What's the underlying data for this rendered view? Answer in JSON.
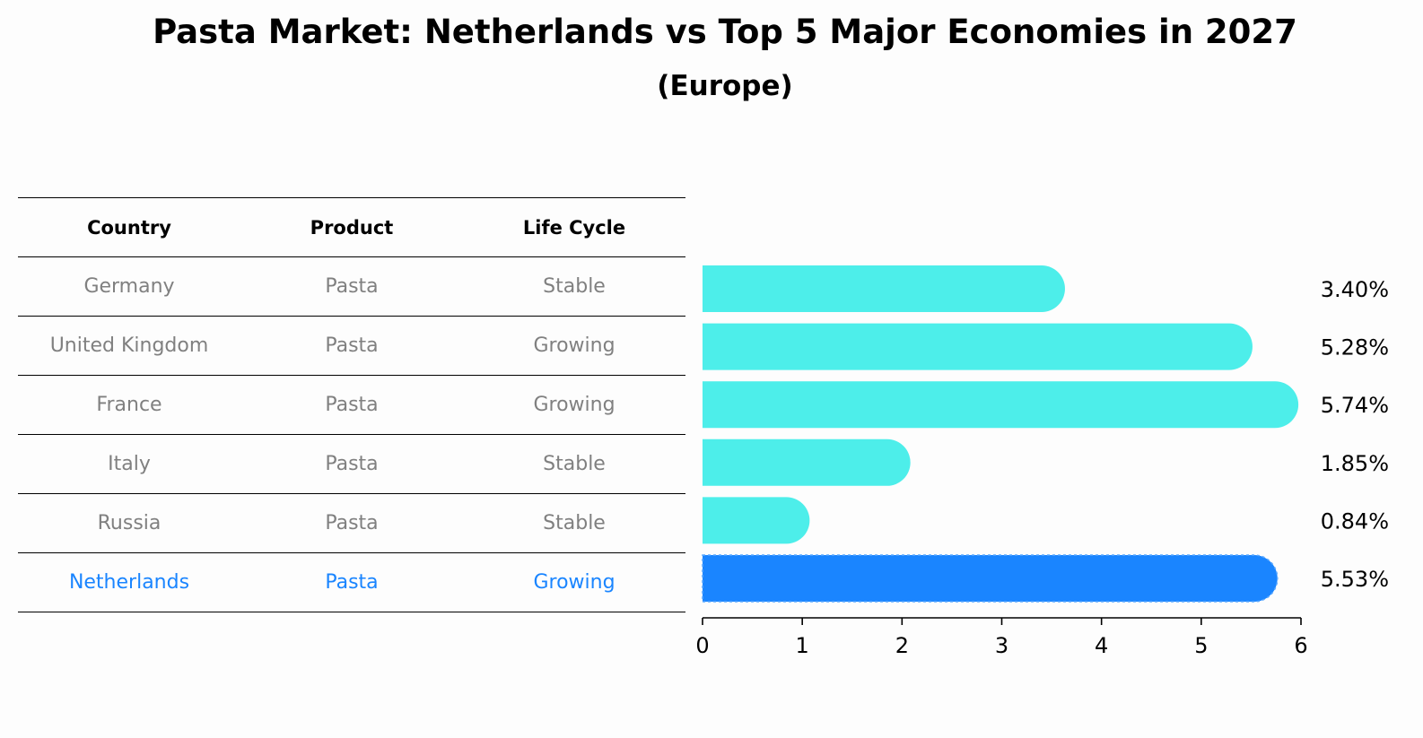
{
  "title": "Pasta Market: Netherlands vs Top 5 Major Economies in 2027",
  "subtitle": "(Europe)",
  "table": {
    "headers": [
      "Country",
      "Product",
      "Life Cycle"
    ],
    "rows": [
      {
        "country": "Germany",
        "product": "Pasta",
        "life_cycle": "Stable"
      },
      {
        "country": "United Kingdom",
        "product": "Pasta",
        "life_cycle": "Growing"
      },
      {
        "country": "France",
        "product": "Pasta",
        "life_cycle": "Growing"
      },
      {
        "country": "Italy",
        "product": "Pasta",
        "life_cycle": "Stable"
      },
      {
        "country": "Russia",
        "product": "Pasta",
        "life_cycle": "Stable"
      },
      {
        "country": "Netherlands",
        "product": "Pasta",
        "life_cycle": "Growing"
      }
    ]
  },
  "colors": {
    "bar": "#4deeea",
    "highlight": "#1a85ff",
    "text_muted": "#808080"
  },
  "chart_data": {
    "type": "bar",
    "orientation": "horizontal",
    "categories": [
      "Germany",
      "United Kingdom",
      "France",
      "Italy",
      "Russia",
      "Netherlands"
    ],
    "values": [
      3.4,
      5.28,
      5.74,
      1.85,
      0.84,
      5.53
    ],
    "value_labels": [
      "3.40%",
      "5.28%",
      "5.74%",
      "1.85%",
      "0.84%",
      "5.53%"
    ],
    "highlight_index": 5,
    "xlim": [
      0,
      6
    ],
    "xticks": [
      0,
      1,
      2,
      3,
      4,
      5,
      6
    ],
    "grid": false
  }
}
